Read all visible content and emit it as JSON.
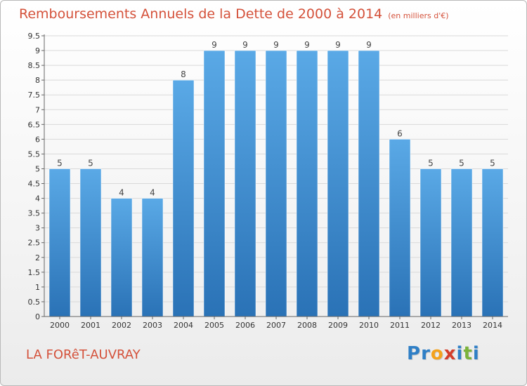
{
  "title": "Remboursements Annuels de la Dette de 2000 à 2014",
  "unit_note": "(en milliers d'€)",
  "commune": "LA FORêT-AUVRAY",
  "logo": {
    "text": "Proxiti",
    "letters": [
      {
        "ch": "P",
        "color": "#2f7fc6"
      },
      {
        "ch": "r",
        "color": "#2f7fc6"
      },
      {
        "ch": "o",
        "color": "#f4a21d"
      },
      {
        "ch": "x",
        "color": "#d43d2a"
      },
      {
        "ch": "i",
        "color": "#2f7fc6"
      },
      {
        "ch": "t",
        "color": "#7bb33a"
      },
      {
        "ch": "i",
        "color": "#2f7fc6"
      }
    ]
  },
  "colors": {
    "accent": "#d4513a",
    "bar_top": "#5aa9e6",
    "bar_bottom": "#2a72b6",
    "grid": "#d9d9d9",
    "axis": "#666666"
  },
  "chart_data": {
    "type": "bar",
    "categories": [
      "2000",
      "2001",
      "2002",
      "2003",
      "2004",
      "2005",
      "2006",
      "2007",
      "2008",
      "2009",
      "2010",
      "2011",
      "2012",
      "2013",
      "2014"
    ],
    "values": [
      5,
      5,
      4,
      4,
      8,
      9,
      9,
      9,
      9,
      9,
      9,
      6,
      5,
      5,
      5
    ],
    "value_labels": [
      "5",
      "5",
      "4",
      "4",
      "8",
      "9",
      "9",
      "9",
      "9",
      "9",
      "9",
      "6",
      "5",
      "5",
      "5"
    ],
    "ylim": [
      0,
      9.5
    ],
    "y_ticks": [
      0,
      0.5,
      1,
      1.5,
      2,
      2.5,
      3,
      3.5,
      4,
      4.5,
      5,
      5.5,
      6,
      6.5,
      7,
      7.5,
      8,
      8.5,
      9,
      9.5
    ],
    "y_tick_labels": [
      "0",
      "0.5",
      "1",
      "1.5",
      "2",
      "2.5",
      "3",
      "3.5",
      "4",
      "4.5",
      "5",
      "5.5",
      "6",
      "6.5",
      "7",
      "7.5",
      "8",
      "8.5",
      "9",
      "9.5"
    ],
    "grid": true,
    "legend": "none"
  }
}
